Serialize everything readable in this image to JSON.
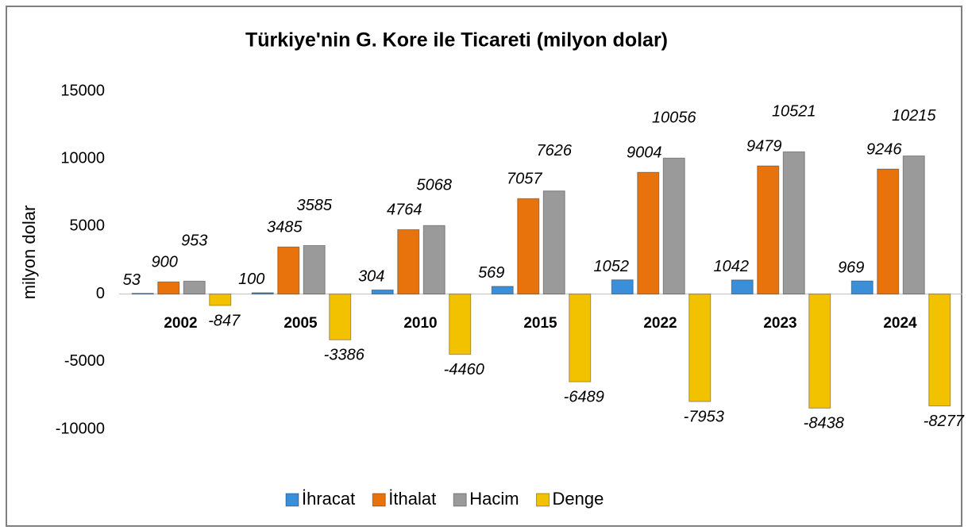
{
  "chart_data": {
    "type": "bar",
    "title": "Türkiye'nin G. Kore ile Ticareti (milyon dolar)",
    "y_label": "milyon dolar",
    "categories": [
      "2002",
      "2005",
      "2010",
      "2015",
      "2022",
      "2023",
      "2024"
    ],
    "series": [
      {
        "name": "İhracat",
        "color": "#3a8fd8",
        "values": [
          53,
          100,
          304,
          569,
          1052,
          1042,
          969
        ]
      },
      {
        "name": "İthalat",
        "color": "#e8720c",
        "values": [
          900,
          3485,
          4764,
          7057,
          9004,
          9479,
          9246
        ]
      },
      {
        "name": "Hacim",
        "color": "#9a9a9a",
        "values": [
          953,
          3585,
          5068,
          7626,
          10056,
          10521,
          10215
        ]
      },
      {
        "name": "Denge",
        "color": "#f2c200",
        "values": [
          -847,
          -3386,
          -4460,
          -6489,
          -7953,
          -8438,
          -8277
        ]
      }
    ],
    "ylim": [
      -10000,
      15000
    ],
    "yticks": [
      -10000,
      -5000,
      0,
      5000,
      10000,
      15000
    ],
    "legend": "bottom"
  }
}
